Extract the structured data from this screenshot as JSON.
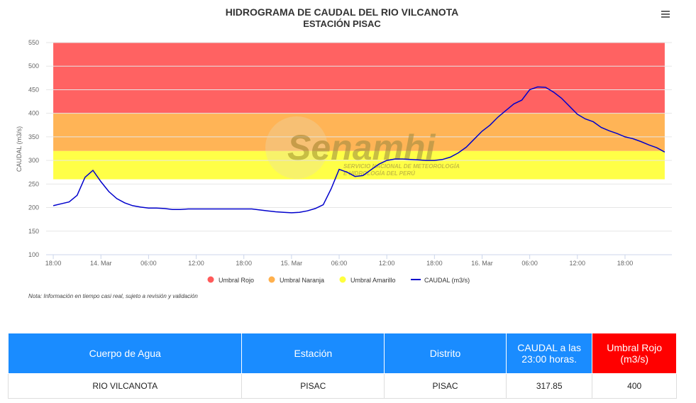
{
  "chart_data": {
    "type": "line",
    "title": "HIDROGRAMA DE CAUDAL DEL RIO VILCANOTA",
    "subtitle": "ESTACIÓN PISAC",
    "y_label": "CAUDAL (m3/s)",
    "note": "Nota: Información en tiempo casi real, sujeto a revisión y validación",
    "watermark": {
      "title": "Senamhi",
      "line1": "SERVICIO NACIONAL DE METEOROLOGÍA",
      "line2": "E HIDROLOGÍA DEL PERÚ"
    },
    "ylim": [
      100,
      550
    ],
    "yticks": [
      100,
      150,
      200,
      250,
      300,
      350,
      400,
      450,
      500,
      550
    ],
    "grid": true,
    "xlim": [
      -0.9,
      77.9
    ],
    "xticks": [
      {
        "value": 0,
        "label": "18:00"
      },
      {
        "value": 6,
        "label": "14. Mar"
      },
      {
        "value": 12,
        "label": "06:00"
      },
      {
        "value": 18,
        "label": "12:00"
      },
      {
        "value": 24,
        "label": "18:00"
      },
      {
        "value": 30,
        "label": "15. Mar"
      },
      {
        "value": 36,
        "label": "06:00"
      },
      {
        "value": 42,
        "label": "12:00"
      },
      {
        "value": 48,
        "label": "18:00"
      },
      {
        "value": 54,
        "label": "16. Mar"
      },
      {
        "value": 60,
        "label": "06:00"
      },
      {
        "value": 66,
        "label": "12:00"
      },
      {
        "value": 72,
        "label": "18:00"
      }
    ],
    "thresholds": [
      {
        "name": "Umbral Rojo",
        "color": "#ff5a5a",
        "from": 400,
        "to": 550
      },
      {
        "name": "Umbral Naranja",
        "color": "#ffb04d",
        "from": 320,
        "to": 400
      },
      {
        "name": "Umbral Amarillo",
        "color": "#ffff3d",
        "from": 260,
        "to": 320
      }
    ],
    "x": [
      0,
      1,
      2,
      3,
      4,
      5,
      6,
      7,
      8,
      9,
      10,
      11,
      12,
      13,
      14,
      15,
      16,
      17,
      18,
      19,
      20,
      21,
      22,
      23,
      24,
      25,
      26,
      27,
      28,
      29,
      30,
      31,
      32,
      33,
      34,
      35,
      36,
      37,
      38,
      39,
      40,
      41,
      42,
      43,
      44,
      45,
      46,
      47,
      48,
      49,
      50,
      51,
      52,
      53,
      54,
      55,
      56,
      57,
      58,
      59,
      60,
      61,
      62,
      63,
      64,
      65,
      66,
      67,
      68,
      69,
      70,
      71,
      72,
      73,
      74,
      75,
      76,
      77
    ],
    "series": [
      {
        "name": "CAUDAL (m3/s)",
        "color": "#0000cc",
        "values": [
          204,
          208,
          212,
          226,
          264,
          279,
          255,
          234,
          219,
          210,
          204,
          201,
          199,
          199,
          198,
          196,
          196,
          197,
          197,
          197,
          197,
          197,
          197,
          197,
          197,
          197,
          195,
          193,
          191,
          190,
          189,
          190,
          193,
          198,
          206,
          240,
          281,
          275,
          266,
          268,
          280,
          292,
          300,
          303,
          303,
          302,
          301,
          300,
          300,
          302,
          307,
          316,
          328,
          345,
          362,
          375,
          392,
          406,
          420,
          428,
          450,
          456,
          455,
          445,
          432,
          415,
          398,
          388,
          382,
          370,
          363,
          357,
          350,
          346,
          340,
          333,
          327,
          317.85
        ]
      }
    ],
    "legend": "bottom"
  },
  "table": {
    "headers": [
      "Cuerpo de Agua",
      "Estación",
      "Distrito",
      "CAUDAL a las 23:00 horas.",
      "Umbral Rojo (m3/s)"
    ],
    "rows": [
      [
        "RIO VILCANOTA",
        "PISAC",
        "PISAC",
        317.85,
        400
      ]
    ]
  }
}
